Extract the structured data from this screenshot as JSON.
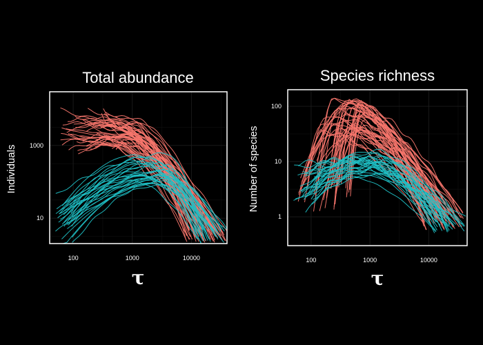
{
  "chart_data": [
    {
      "type": "line",
      "title": "Total abundance",
      "xlabel": "τ",
      "ylabel": "Individuals",
      "x_scale": "log10",
      "y_scale": "log10",
      "xlim": [
        40,
        40000
      ],
      "ylim": [
        2,
        30000
      ],
      "x_ticks": [
        {
          "value": 100,
          "label": "100"
        },
        {
          "value": 1000,
          "label": "1000"
        },
        {
          "value": 10000,
          "label": "10000"
        }
      ],
      "y_ticks": [
        {
          "value": 10,
          "label": "10"
        },
        {
          "value": 1000,
          "label": "1000"
        }
      ],
      "grid": true,
      "series": [
        {
          "group": "red",
          "count": 55,
          "x_start": [
            60,
            700
          ],
          "x_peak": [
            200,
            1500
          ],
          "y_peak": [
            1000,
            6000
          ],
          "y_start_ratio": [
            0.4,
            2.5
          ],
          "x_end": [
            8000,
            40000
          ],
          "y_end": [
            2,
            5
          ]
        },
        {
          "group": "teal",
          "count": 30,
          "x_start": [
            50,
            100
          ],
          "x_peak": [
            1000,
            5000
          ],
          "y_peak": [
            80,
            600
          ],
          "y_start_ratio": [
            0.015,
            0.12
          ],
          "x_end": [
            12000,
            40000
          ],
          "y_end": [
            2,
            5
          ]
        }
      ]
    },
    {
      "type": "line",
      "title": "Species richness",
      "xlabel": "τ",
      "ylabel": "Number of species",
      "x_scale": "log10",
      "y_scale": "log10",
      "xlim": [
        40,
        45000
      ],
      "ylim": [
        0.3,
        200
      ],
      "x_ticks": [
        {
          "value": 100,
          "label": "100"
        },
        {
          "value": 1000,
          "label": "1000"
        },
        {
          "value": 10000,
          "label": "10000"
        }
      ],
      "y_ticks": [
        {
          "value": 1,
          "label": "1"
        },
        {
          "value": 10,
          "label": "10"
        },
        {
          "value": 100,
          "label": "100"
        }
      ],
      "grid": true,
      "series": [
        {
          "group": "red",
          "count": 50,
          "x_start": [
            60,
            500
          ],
          "x_peak": [
            150,
            800
          ],
          "y_peak": [
            30,
            140
          ],
          "y_start_ratio": [
            0.03,
            0.12
          ],
          "x_end": [
            8000,
            40000
          ],
          "y_end": [
            0.6,
            1.2
          ]
        },
        {
          "group": "teal",
          "count": 30,
          "x_start": [
            50,
            120
          ],
          "x_peak": [
            400,
            2500
          ],
          "y_peak": [
            5,
            18
          ],
          "y_start_ratio": [
            0.2,
            0.9
          ],
          "x_end": [
            12000,
            45000
          ],
          "y_end": [
            0.5,
            1
          ]
        }
      ]
    }
  ],
  "colors": {
    "background": "#000000",
    "panel": "#000000",
    "frame": "#ffffff",
    "text": "#ffffff",
    "red": "#f8766d",
    "teal": "#1fbfc4"
  }
}
